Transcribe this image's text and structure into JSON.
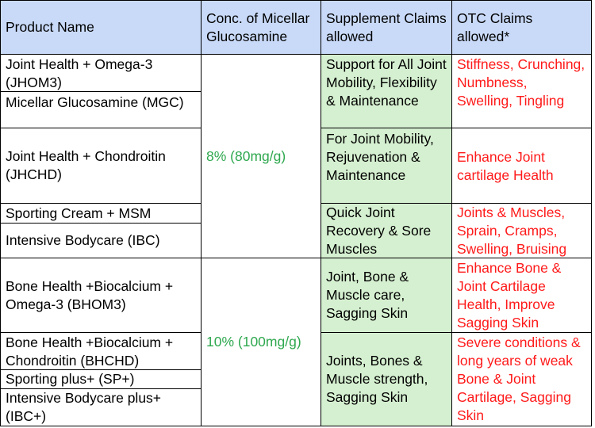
{
  "headers": {
    "product": "Product Name",
    "conc": "Conc. of Micellar Glucosamine",
    "supplement": "Supplement Claims allowed",
    "otc": "OTC Claims allowed*"
  },
  "products": [
    "Joint Health + Omega-3 (JHOM3)",
    "Micellar Glucosamine (MGC)",
    "Joint Health + Chondroitin (JHCHD)",
    "Sporting Cream + MSM",
    "Intensive Bodycare (IBC)",
    "Bone Health +Biocalcium + Omega-3 (BHOM3)",
    "Bone Health +Biocalcium + Chondroitin (BHCHD)",
    "Sporting plus+ (SP+)",
    "Intensive Bodycare plus+ (IBC+)"
  ],
  "concentrations": [
    "8% (80mg/g)",
    "10% (100mg/g)"
  ],
  "supplement_claims": [
    "Support for All Joint Mobility, Flexibility & Maintenance",
    "For Joint Mobility, Rejuvenation & Maintenance",
    "Quick Joint Recovery & Sore Muscles",
    "Joint, Bone & Muscle care, Sagging Skin",
    "Joints, Bones & Muscle strength, Sagging Skin"
  ],
  "otc_claims": [
    "Stiffness, Crunching, Numbness, Swelling, Tingling",
    "Enhance Joint cartilage Health",
    "Joints & Muscles, Sprain, Cramps, Swelling, Bruising",
    "Enhance Bone & Joint Cartilage Health, Improve Sagging Skin",
    "Severe conditions & long years of weak Bone & Joint Cartilage, Sagging Skin"
  ],
  "colors": {
    "header_bg": "#c9daf8",
    "supplement_bg": "#d5f0d0",
    "concentration_text": "#2fa84f",
    "otc_text": "#ff1a1a",
    "border": "#000000"
  }
}
